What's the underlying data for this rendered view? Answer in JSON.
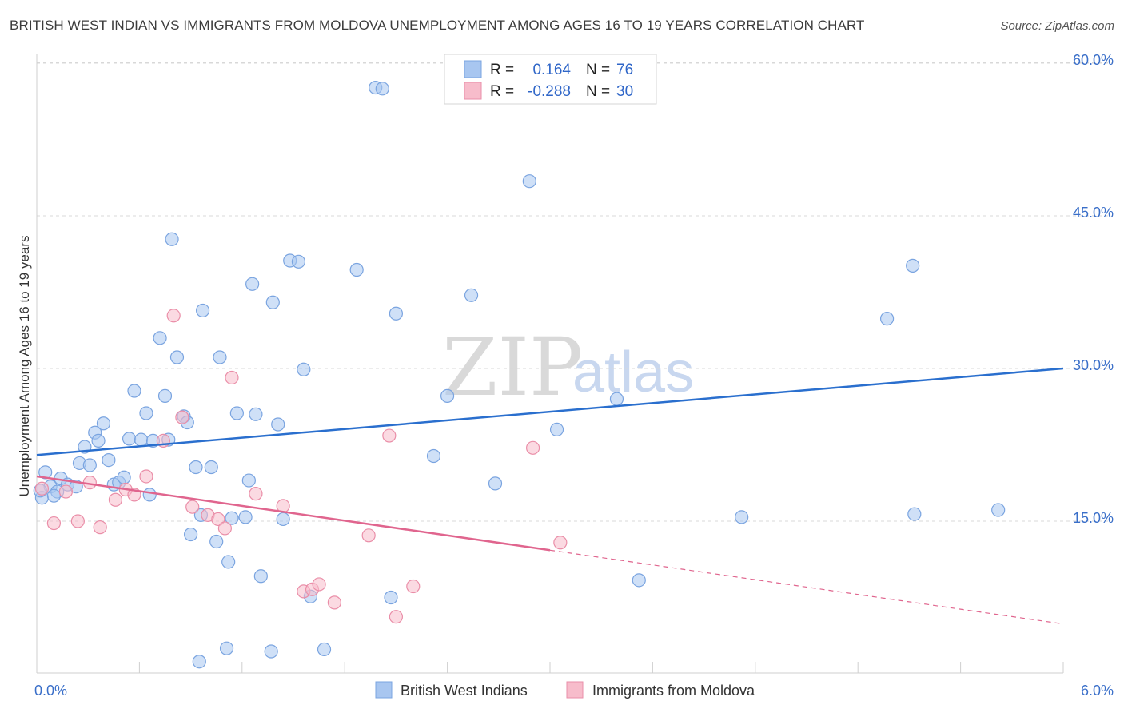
{
  "header": {
    "title": "BRITISH WEST INDIAN VS IMMIGRANTS FROM MOLDOVA UNEMPLOYMENT AMONG AGES 16 TO 19 YEARS CORRELATION CHART",
    "source": "Source: ZipAtlas.com"
  },
  "watermark": {
    "zip": "ZIP",
    "atlas": "atlas"
  },
  "legend": {
    "r_label": "R =",
    "n_label": "N =",
    "series": [
      {
        "r": "0.164",
        "n": "76",
        "color": "#a8c6f0"
      },
      {
        "r": "-0.288",
        "n": "30",
        "color": "#f7bccb"
      }
    ]
  },
  "colors": {
    "blue_fill": "#a8c6f0",
    "blue_stroke": "#7aa4e0",
    "blue_line": "#2a6fce",
    "pink_fill": "#f7bccb",
    "pink_stroke": "#ea8ea8",
    "pink_line": "#e0658e",
    "grid": "#d8d8d8",
    "tick_label": "#3a6fc9"
  },
  "chart_data": {
    "type": "scatter",
    "title": "BRITISH WEST INDIAN VS IMMIGRANTS FROM MOLDOVA UNEMPLOYMENT AMONG AGES 16 TO 19 YEARS CORRELATION CHART",
    "xlabel": "",
    "ylabel": "Unemployment Among Ages 16 to 19 years",
    "xlim": [
      0,
      6
    ],
    "ylim": [
      0,
      60
    ],
    "x_tick_labels": [
      "0.0%",
      "6.0%"
    ],
    "y_ticks": [
      15,
      30,
      45,
      60
    ],
    "y_tick_labels": [
      "15.0%",
      "30.0%",
      "45.0%",
      "60.0%"
    ],
    "legend_position": "top-center",
    "series": [
      {
        "name": "British West Indians",
        "r": 0.164,
        "n": 76,
        "trend": {
          "x0": 0,
          "y0": 21.5,
          "x1": 6,
          "y1": 30.0,
          "dashed_from": null
        },
        "points": [
          [
            0.03,
            17.3
          ],
          [
            0.05,
            19.8
          ],
          [
            0.08,
            18.4
          ],
          [
            0.12,
            17.9
          ],
          [
            0.14,
            19.2
          ],
          [
            0.18,
            18.6
          ],
          [
            0.23,
            18.4
          ],
          [
            0.25,
            20.7
          ],
          [
            0.28,
            22.3
          ],
          [
            0.31,
            20.5
          ],
          [
            0.34,
            23.7
          ],
          [
            0.36,
            22.9
          ],
          [
            0.39,
            24.6
          ],
          [
            0.42,
            21.0
          ],
          [
            0.45,
            18.6
          ],
          [
            0.48,
            18.8
          ],
          [
            0.51,
            19.3
          ],
          [
            0.54,
            23.1
          ],
          [
            0.57,
            27.8
          ],
          [
            0.61,
            23.0
          ],
          [
            0.64,
            25.6
          ],
          [
            0.66,
            17.6
          ],
          [
            0.68,
            22.9
          ],
          [
            0.72,
            33.0
          ],
          [
            0.75,
            27.3
          ],
          [
            0.77,
            23.0
          ],
          [
            0.79,
            42.7
          ],
          [
            0.82,
            31.1
          ],
          [
            0.86,
            25.3
          ],
          [
            0.88,
            24.7
          ],
          [
            0.9,
            13.7
          ],
          [
            0.93,
            20.3
          ],
          [
            0.96,
            15.6
          ],
          [
            0.97,
            35.7
          ],
          [
            1.02,
            20.3
          ],
          [
            1.05,
            13.0
          ],
          [
            1.07,
            31.1
          ],
          [
            1.12,
            11.0
          ],
          [
            1.14,
            15.3
          ],
          [
            1.17,
            25.6
          ],
          [
            1.22,
            15.4
          ],
          [
            1.24,
            19.0
          ],
          [
            1.26,
            38.3
          ],
          [
            1.28,
            25.5
          ],
          [
            1.31,
            9.6
          ],
          [
            1.38,
            36.5
          ],
          [
            1.41,
            24.5
          ],
          [
            1.44,
            15.2
          ],
          [
            1.48,
            40.6
          ],
          [
            1.53,
            40.5
          ],
          [
            1.56,
            29.9
          ],
          [
            1.6,
            7.6
          ],
          [
            1.87,
            39.7
          ],
          [
            1.98,
            57.6
          ],
          [
            2.02,
            57.5
          ],
          [
            2.07,
            7.5
          ],
          [
            2.1,
            35.4
          ],
          [
            2.32,
            21.4
          ],
          [
            2.4,
            27.3
          ],
          [
            2.54,
            37.2
          ],
          [
            2.68,
            18.7
          ],
          [
            2.88,
            48.4
          ],
          [
            3.04,
            24.0
          ],
          [
            3.39,
            27.0
          ],
          [
            3.52,
            9.2
          ],
          [
            4.12,
            15.4
          ],
          [
            4.97,
            34.9
          ],
          [
            5.12,
            40.1
          ],
          [
            5.13,
            15.7
          ],
          [
            5.62,
            16.1
          ],
          [
            0.95,
            1.2
          ],
          [
            1.11,
            2.5
          ],
          [
            1.37,
            2.2
          ],
          [
            1.68,
            2.4
          ],
          [
            0.02,
            18.0
          ],
          [
            0.1,
            17.5
          ]
        ]
      },
      {
        "name": "Immigrants from Moldova",
        "r": -0.288,
        "n": 30,
        "trend": {
          "x0": 0,
          "y0": 19.4,
          "x1": 6,
          "y1": 4.9,
          "dashed_from": 3.0
        },
        "points": [
          [
            0.03,
            18.2
          ],
          [
            0.1,
            14.8
          ],
          [
            0.17,
            17.9
          ],
          [
            0.24,
            15.0
          ],
          [
            0.31,
            18.8
          ],
          [
            0.37,
            14.4
          ],
          [
            0.46,
            17.1
          ],
          [
            0.52,
            18.1
          ],
          [
            0.57,
            17.6
          ],
          [
            0.64,
            19.4
          ],
          [
            0.74,
            22.9
          ],
          [
            0.8,
            35.2
          ],
          [
            0.85,
            25.2
          ],
          [
            0.91,
            16.4
          ],
          [
            1.0,
            15.6
          ],
          [
            1.06,
            15.2
          ],
          [
            1.1,
            14.3
          ],
          [
            1.14,
            29.1
          ],
          [
            1.28,
            17.7
          ],
          [
            1.44,
            16.5
          ],
          [
            1.56,
            8.1
          ],
          [
            1.61,
            8.3
          ],
          [
            1.65,
            8.8
          ],
          [
            1.74,
            7.0
          ],
          [
            1.94,
            13.6
          ],
          [
            2.06,
            23.4
          ],
          [
            2.1,
            5.6
          ],
          [
            2.2,
            8.6
          ],
          [
            2.9,
            22.2
          ],
          [
            3.06,
            12.9
          ]
        ]
      }
    ]
  },
  "bottom_legend": {
    "items": [
      {
        "label": "British West Indians",
        "color": "#a8c6f0"
      },
      {
        "label": "Immigrants from Moldova",
        "color": "#f7bccb"
      }
    ]
  }
}
